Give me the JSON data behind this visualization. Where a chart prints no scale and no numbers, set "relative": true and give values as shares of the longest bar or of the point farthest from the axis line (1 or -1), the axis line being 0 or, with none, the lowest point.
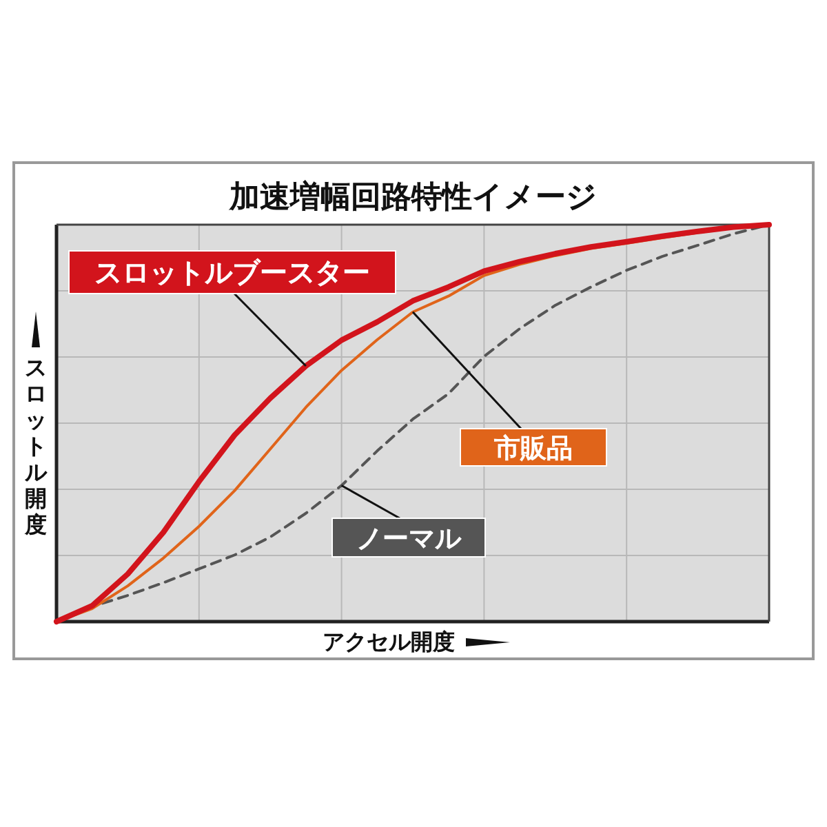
{
  "chart_data": {
    "type": "line",
    "title": "加速増幅回路特性イメージ",
    "xlabel": "アクセル開度",
    "ylabel": "スロットル開度",
    "relative": true,
    "grid": true,
    "legend": false,
    "categories": [
      null,
      null,
      null,
      null,
      null,
      null,
      null,
      null,
      null,
      null,
      null,
      null,
      null,
      null,
      null,
      null,
      null,
      null,
      null,
      null,
      null
    ],
    "series": [
      {
        "name": "スロットルブースター",
        "color": "#d2141c",
        "line_style": "solid",
        "values": [
          0,
          0.04,
          0.12,
          0.225,
          0.353,
          0.47,
          0.563,
          0.644,
          0.709,
          0.755,
          0.808,
          0.843,
          0.883,
          0.907,
          0.927,
          0.944,
          0.957,
          0.971,
          0.983,
          0.994,
          1
        ]
      },
      {
        "name": "市販品",
        "color": "#e0641a",
        "line_style": "solid",
        "values": [
          0,
          0.033,
          0.09,
          0.16,
          0.24,
          0.33,
          0.435,
          0.54,
          0.633,
          0.71,
          0.78,
          0.82,
          0.872,
          0.9,
          0.922,
          0.94,
          0.953,
          0.967,
          0.98,
          0.992,
          1
        ]
      },
      {
        "name": "ノーマル",
        "color": "#555555",
        "line_style": "dashed",
        "values": [
          0,
          0.038,
          0.066,
          0.098,
          0.133,
          0.168,
          0.213,
          0.273,
          0.343,
          0.43,
          0.51,
          0.574,
          0.668,
          0.738,
          0.797,
          0.843,
          0.885,
          0.92,
          0.948,
          0.977,
          1
        ]
      }
    ]
  }
}
